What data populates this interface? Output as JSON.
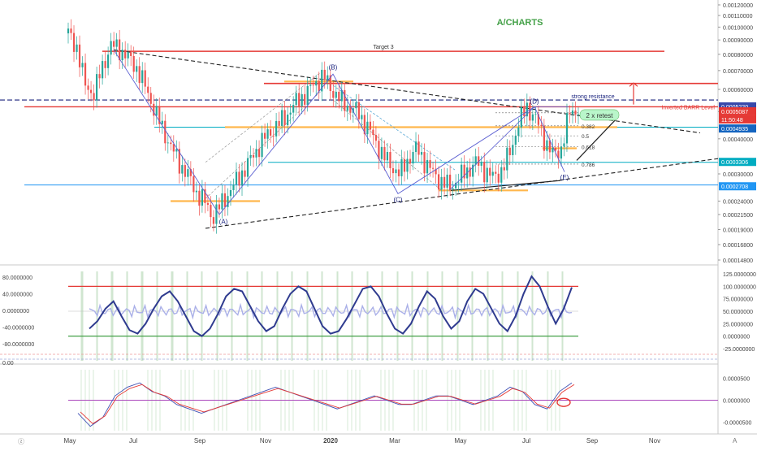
{
  "watermark": "A/CHARTS",
  "colors": {
    "background": "#ffffff",
    "candle_up": "#26a69a",
    "candle_down": "#ef5350",
    "wave": "#5b5fd1",
    "resistance": "#e53935",
    "support": "#00acc1",
    "fib_orange": "#ffb74d",
    "trend_dashed": "#222222",
    "oscillator": "#2f3b8f",
    "oscillator_fast": "#aab0e8",
    "watermark": "#43a047",
    "green_vbar": "#9ccc9c",
    "macd_red": "#e53935",
    "macd_blue": "#3f51b5"
  },
  "chart_data": [
    {
      "type": "candlestick",
      "x_ticks": [
        "May",
        "Jul",
        "Sep",
        "Nov",
        "2020",
        "Mar",
        "May",
        "Jul",
        "Sep",
        "Nov"
      ],
      "y_axis_labels": [
        "0.00120000",
        "0.00110000",
        "0.00100000",
        "0.00090000",
        "0.00080000",
        "0.00070000",
        "0.00060000",
        "0.00050000",
        "0.00040000",
        "0.00030000",
        "0.00024000",
        "0.00021500",
        "0.00019000",
        "0.00016800",
        "0.00014800"
      ],
      "ylim": [
        0.000148,
        0.0012
      ],
      "scale": "log",
      "close": [
        0.00095,
        0.00085,
        0.00062,
        0.00058,
        0.00072,
        0.00086,
        0.00084,
        0.00078,
        0.00072,
        0.00062,
        0.00052,
        0.00044,
        0.00038,
        0.00033,
        0.0003,
        0.00026,
        0.00024,
        0.00021,
        0.000235,
        0.00026,
        0.00029,
        0.00032,
        0.00036,
        0.0004,
        0.00043,
        0.00046,
        0.0005,
        0.00055,
        0.00058,
        0.00063,
        0.00067,
        0.0006,
        0.00055,
        0.00052,
        0.0005,
        0.00045,
        0.0004,
        0.00035,
        0.00032,
        0.0003,
        0.00034,
        0.00037,
        0.00033,
        0.0003,
        0.00028,
        0.00027,
        0.00029,
        0.00031,
        0.00033,
        0.00031,
        0.00029,
        0.00031,
        0.00036,
        0.00046,
        0.00052,
        0.00047,
        0.0004,
        0.00035,
        0.00037,
        0.0005,
        0.00051
      ],
      "price_levels": [
        {
          "label": "Target 3",
          "value": 0.00082,
          "color": "#e53935"
        },
        {
          "label": "",
          "value": 0.00063,
          "color": "#e53935"
        },
        {
          "label": "Inverted BARR Level",
          "value": 0.00052,
          "color": "#e53935"
        },
        {
          "label": "strong resistance",
          "value": 0.00055,
          "color": "#1a237e"
        },
        {
          "label": "",
          "value": 0.00044,
          "color": "#00acc1"
        },
        {
          "label": "",
          "value": 0.00033,
          "color": "#00acc1"
        },
        {
          "label": "",
          "value": 0.000274,
          "color": "#2196f3"
        }
      ],
      "fib_levels": [
        "0.5",
        "0.382",
        "0.5",
        "0.618",
        "0.786"
      ],
      "wave_labels": [
        "(A)",
        "(B)",
        "(C)",
        "(D)",
        "(E)"
      ],
      "annotations": [
        "2 x retest"
      ],
      "price_tags": [
        {
          "text": "0.0005220",
          "bg": "#3949ab"
        },
        {
          "text": "0.0005087",
          "bg": "#e53935"
        },
        {
          "text": "11:50:48",
          "bg": "#e53935"
        },
        {
          "text": "0.0004935",
          "bg": "#1565c0"
        },
        {
          "text": "0.0003306",
          "bg": "#00acc1"
        },
        {
          "text": "0.0002708",
          "bg": "#2196f3"
        }
      ]
    },
    {
      "type": "line",
      "name": "",
      "y_axis_left": [
        "80.0000000",
        "40.0000000",
        "0.0000000",
        "-40.0000000",
        "-80.0000000",
        "0.00"
      ],
      "y_axis_right": [
        "125.0000000",
        "100.0000000",
        "75.0000000",
        "50.0000000",
        "25.0000000",
        "0.0000000",
        "-25.0000000"
      ],
      "ylim": [
        -30,
        130
      ],
      "overbought": 100,
      "oversold": 0,
      "values": [
        15,
        30,
        55,
        70,
        40,
        12,
        5,
        25,
        55,
        80,
        90,
        70,
        40,
        10,
        0,
        15,
        45,
        80,
        95,
        90,
        60,
        30,
        10,
        20,
        55,
        85,
        100,
        90,
        55,
        20,
        5,
        10,
        35,
        65,
        95,
        100,
        80,
        45,
        15,
        5,
        25,
        60,
        90,
        75,
        40,
        15,
        30,
        70,
        95,
        85,
        55,
        25,
        10,
        40,
        85,
        120,
        100,
        60,
        25,
        55,
        98
      ]
    },
    {
      "type": "line",
      "name": "",
      "y_axis_right": [
        "0.0000500",
        "0.0000000",
        "-0.0000500"
      ],
      "ylim": [
        -7e-05,
        7e-05
      ],
      "series_a": [
        -3e-05,
        -6e-05,
        -4e-05,
        1e-05,
        3e-05,
        4e-05,
        2e-05,
        1e-05,
        -1e-05,
        -2e-05,
        -3e-05,
        -2e-05,
        -1e-05,
        0.0,
        1e-05,
        2e-05,
        3e-05,
        2e-05,
        1e-05,
        0.0,
        -1e-05,
        -2e-05,
        -1e-05,
        0.0,
        1e-05,
        0.0,
        -1e-05,
        -1e-05,
        0.0,
        1e-05,
        1e-05,
        0.0,
        -1e-05,
        0.0,
        1e-05,
        3e-05,
        2e-05,
        -1e-05,
        -2e-05,
        2e-05,
        4e-05
      ]
    }
  ]
}
